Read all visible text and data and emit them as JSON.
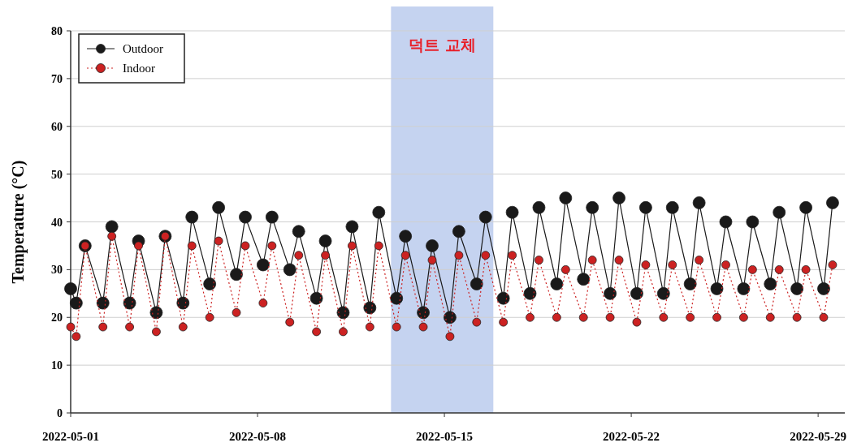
{
  "chart_data": {
    "type": "line",
    "ylabel": "Temperature (°C)",
    "ylim": [
      0,
      80
    ],
    "yticks": [
      0,
      10,
      20,
      30,
      40,
      50,
      60,
      70,
      80
    ],
    "xlim": [
      "2022-05-01",
      "2022-05-30"
    ],
    "xticks": [
      "2022-05-01",
      "2022-05-08",
      "2022-05-15",
      "2022-05-22",
      "2022-05-29"
    ],
    "grid": "y",
    "legend": "top left",
    "marker": "circle",
    "bands": [
      {
        "axis": "x",
        "from": "2022-05-13",
        "to": "2022-05-16T20:00",
        "label": "덕트 교체",
        "color": "#c5d3f0"
      }
    ],
    "x": [
      "2022-05-01T00:00",
      "2022-05-01T05:00",
      "2022-05-01T13:00",
      "2022-05-02T05:00",
      "2022-05-02T13:00",
      "2022-05-03T05:00",
      "2022-05-03T13:00",
      "2022-05-04T05:00",
      "2022-05-04T13:00",
      "2022-05-05T05:00",
      "2022-05-05T13:00",
      "2022-05-06T05:00",
      "2022-05-06T13:00",
      "2022-05-07T05:00",
      "2022-05-07T13:00",
      "2022-05-08T05:00",
      "2022-05-08T13:00",
      "2022-05-09T05:00",
      "2022-05-09T13:00",
      "2022-05-10T05:00",
      "2022-05-10T13:00",
      "2022-05-11T05:00",
      "2022-05-11T13:00",
      "2022-05-12T05:00",
      "2022-05-12T13:00",
      "2022-05-13T05:00",
      "2022-05-13T13:00",
      "2022-05-14T05:00",
      "2022-05-14T13:00",
      "2022-05-15T05:00",
      "2022-05-15T13:00",
      "2022-05-16T05:00",
      "2022-05-16T13:00",
      "2022-05-17T05:00",
      "2022-05-17T13:00",
      "2022-05-18T05:00",
      "2022-05-18T13:00",
      "2022-05-19T05:00",
      "2022-05-19T13:00",
      "2022-05-20T05:00",
      "2022-05-20T13:00",
      "2022-05-21T05:00",
      "2022-05-21T13:00",
      "2022-05-22T05:00",
      "2022-05-22T13:00",
      "2022-05-23T05:00",
      "2022-05-23T13:00",
      "2022-05-24T05:00",
      "2022-05-24T13:00",
      "2022-05-25T05:00",
      "2022-05-25T13:00",
      "2022-05-26T05:00",
      "2022-05-26T13:00",
      "2022-05-27T05:00",
      "2022-05-27T13:00",
      "2022-05-28T05:00",
      "2022-05-28T13:00",
      "2022-05-29T05:00",
      "2022-05-29T13:00"
    ],
    "series": [
      {
        "name": "Outdoor",
        "color": "#1a1a1a",
        "line_style": "solid",
        "values": [
          26,
          23,
          35,
          23,
          39,
          23,
          36,
          21,
          37,
          23,
          41,
          27,
          43,
          29,
          41,
          31,
          41,
          30,
          38,
          24,
          36,
          21,
          39,
          22,
          42,
          24,
          37,
          21,
          35,
          20,
          38,
          27,
          41,
          24,
          42,
          25,
          43,
          27,
          45,
          28,
          43,
          25,
          45,
          25,
          43,
          25,
          43,
          27,
          44,
          26,
          40,
          26,
          40,
          27,
          42,
          26,
          43,
          26,
          44
        ]
      },
      {
        "name": "Indoor",
        "color": "#cc2222",
        "line_style": "dotted",
        "values": [
          18,
          16,
          35,
          18,
          37,
          18,
          35,
          17,
          37,
          18,
          35,
          20,
          36,
          21,
          35,
          23,
          35,
          19,
          33,
          17,
          33,
          17,
          35,
          18,
          35,
          18,
          33,
          18,
          32,
          16,
          33,
          19,
          33,
          19,
          33,
          20,
          32,
          20,
          30,
          20,
          32,
          20,
          32,
          19,
          31,
          20,
          31,
          20,
          32,
          20,
          31,
          20,
          30,
          20,
          30,
          20,
          30,
          20,
          31
        ]
      }
    ]
  }
}
